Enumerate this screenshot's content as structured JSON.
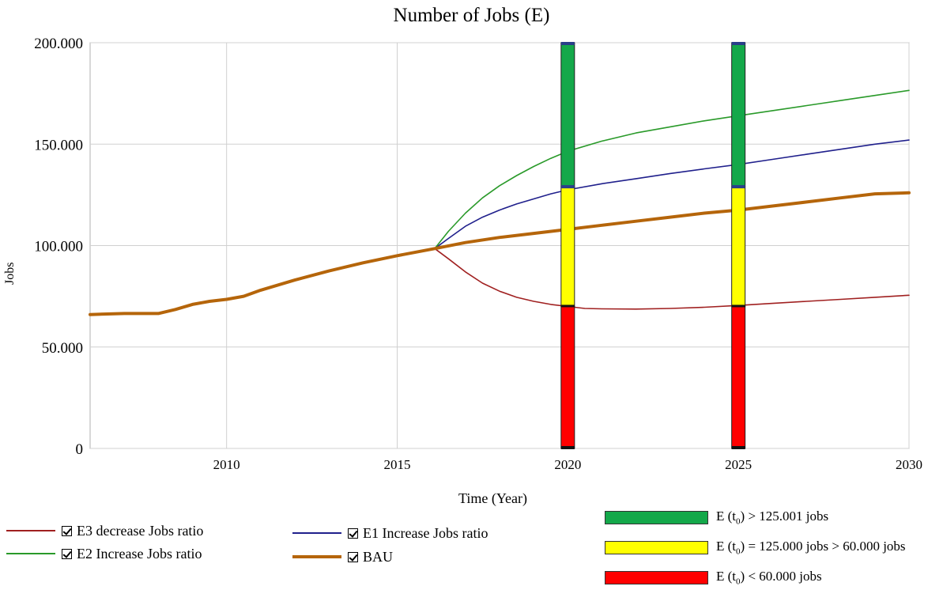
{
  "chart_data": {
    "type": "line",
    "title": "Number of Jobs (E)",
    "xlabel": "Time (Year)",
    "ylabel": "Jobs",
    "xlim": [
      2006,
      2030
    ],
    "ylim": [
      0,
      200000
    ],
    "x_ticks": [
      "2010",
      "2015",
      "2020",
      "2025",
      "2030"
    ],
    "y_ticks": [
      "0",
      "50.000",
      "100.000",
      "150.000",
      "200.000"
    ],
    "grid": true,
    "series": [
      {
        "name": "E3 decrease Jobs ratio",
        "color": "#a02020",
        "x": [
          2016.1,
          2016.5,
          2017,
          2017.5,
          2018,
          2018.5,
          2019,
          2019.5,
          2020,
          2020.5,
          2021,
          2022,
          2023,
          2024,
          2025,
          2026,
          2027,
          2028,
          2029,
          2030
        ],
        "y": [
          98500,
          93500,
          87000,
          81500,
          77500,
          74500,
          72500,
          71000,
          70000,
          69000,
          68800,
          68700,
          69000,
          69600,
          70500,
          71500,
          72500,
          73500,
          74500,
          75500
        ]
      },
      {
        "name": "E1 Increase Jobs ratio",
        "color": "#20208c",
        "x": [
          2016.1,
          2016.5,
          2017,
          2017.5,
          2018,
          2018.5,
          2019,
          2019.5,
          2020,
          2021,
          2022,
          2023,
          2024,
          2025,
          2026,
          2027,
          2028,
          2029,
          2030
        ],
        "y": [
          98500,
          103500,
          109500,
          114000,
          117500,
          120500,
          123000,
          125500,
          127500,
          130500,
          133000,
          135500,
          137800,
          140000,
          142500,
          145000,
          147500,
          150000,
          152000
        ]
      },
      {
        "name": "E2 Increase Jobs ratio",
        "color": "#2a9a2a",
        "x": [
          2016.1,
          2016.5,
          2017,
          2017.5,
          2018,
          2018.5,
          2019,
          2019.5,
          2020,
          2021,
          2022,
          2023,
          2024,
          2025,
          2026,
          2027,
          2028,
          2029,
          2030
        ],
        "y": [
          98500,
          107000,
          116000,
          123500,
          129500,
          134500,
          139000,
          143000,
          146500,
          151500,
          155500,
          158500,
          161500,
          164000,
          166500,
          169000,
          171500,
          174000,
          176500
        ]
      },
      {
        "name": "BAU",
        "color": "#b5650a",
        "x": [
          2006,
          2007,
          2008,
          2008.5,
          2009,
          2009.5,
          2010,
          2010.5,
          2011,
          2012,
          2013,
          2014,
          2015,
          2016.1,
          2017,
          2018,
          2019,
          2020,
          2021,
          2022,
          2023,
          2024,
          2025,
          2026,
          2027,
          2028,
          2029,
          2030
        ],
        "y": [
          66000,
          66500,
          66500,
          68500,
          71000,
          72500,
          73500,
          75000,
          78000,
          83000,
          87500,
          91500,
          95000,
          98500,
          101500,
          104000,
          106000,
          108000,
          110000,
          112000,
          114000,
          116000,
          117500,
          119500,
          121500,
          123500,
          125500,
          126000
        ]
      }
    ],
    "zone_bars": {
      "x": [
        2020,
        2025
      ],
      "bands": [
        {
          "label": "E (t₀) > 125.001 jobs",
          "from": 129000,
          "to": 200000,
          "color": "#14a84a"
        },
        {
          "label": "E (t₀) = 125.000  jobs > 60.000  jobs",
          "from": 70000,
          "to": 129000,
          "color": "#ffff00"
        },
        {
          "label": "E (t₀) < 60.000 jobs",
          "from": 0,
          "to": 70000,
          "color": "#ff0000"
        }
      ]
    }
  },
  "legend": {
    "e3": "E3 decrease Jobs ratio",
    "e1": "E1 Increase Jobs ratio",
    "e2": "E2 Increase Jobs ratio",
    "bau": "BAU"
  },
  "zones": {
    "green_pre": "E (t",
    "green_post": ") > 125.001 jobs",
    "yellow_pre": "E (t",
    "yellow_post": ") = 125.000  jobs > 60.000  jobs",
    "red_pre": "E (t",
    "red_post": ") < 60.000 jobs",
    "sub": "0"
  }
}
